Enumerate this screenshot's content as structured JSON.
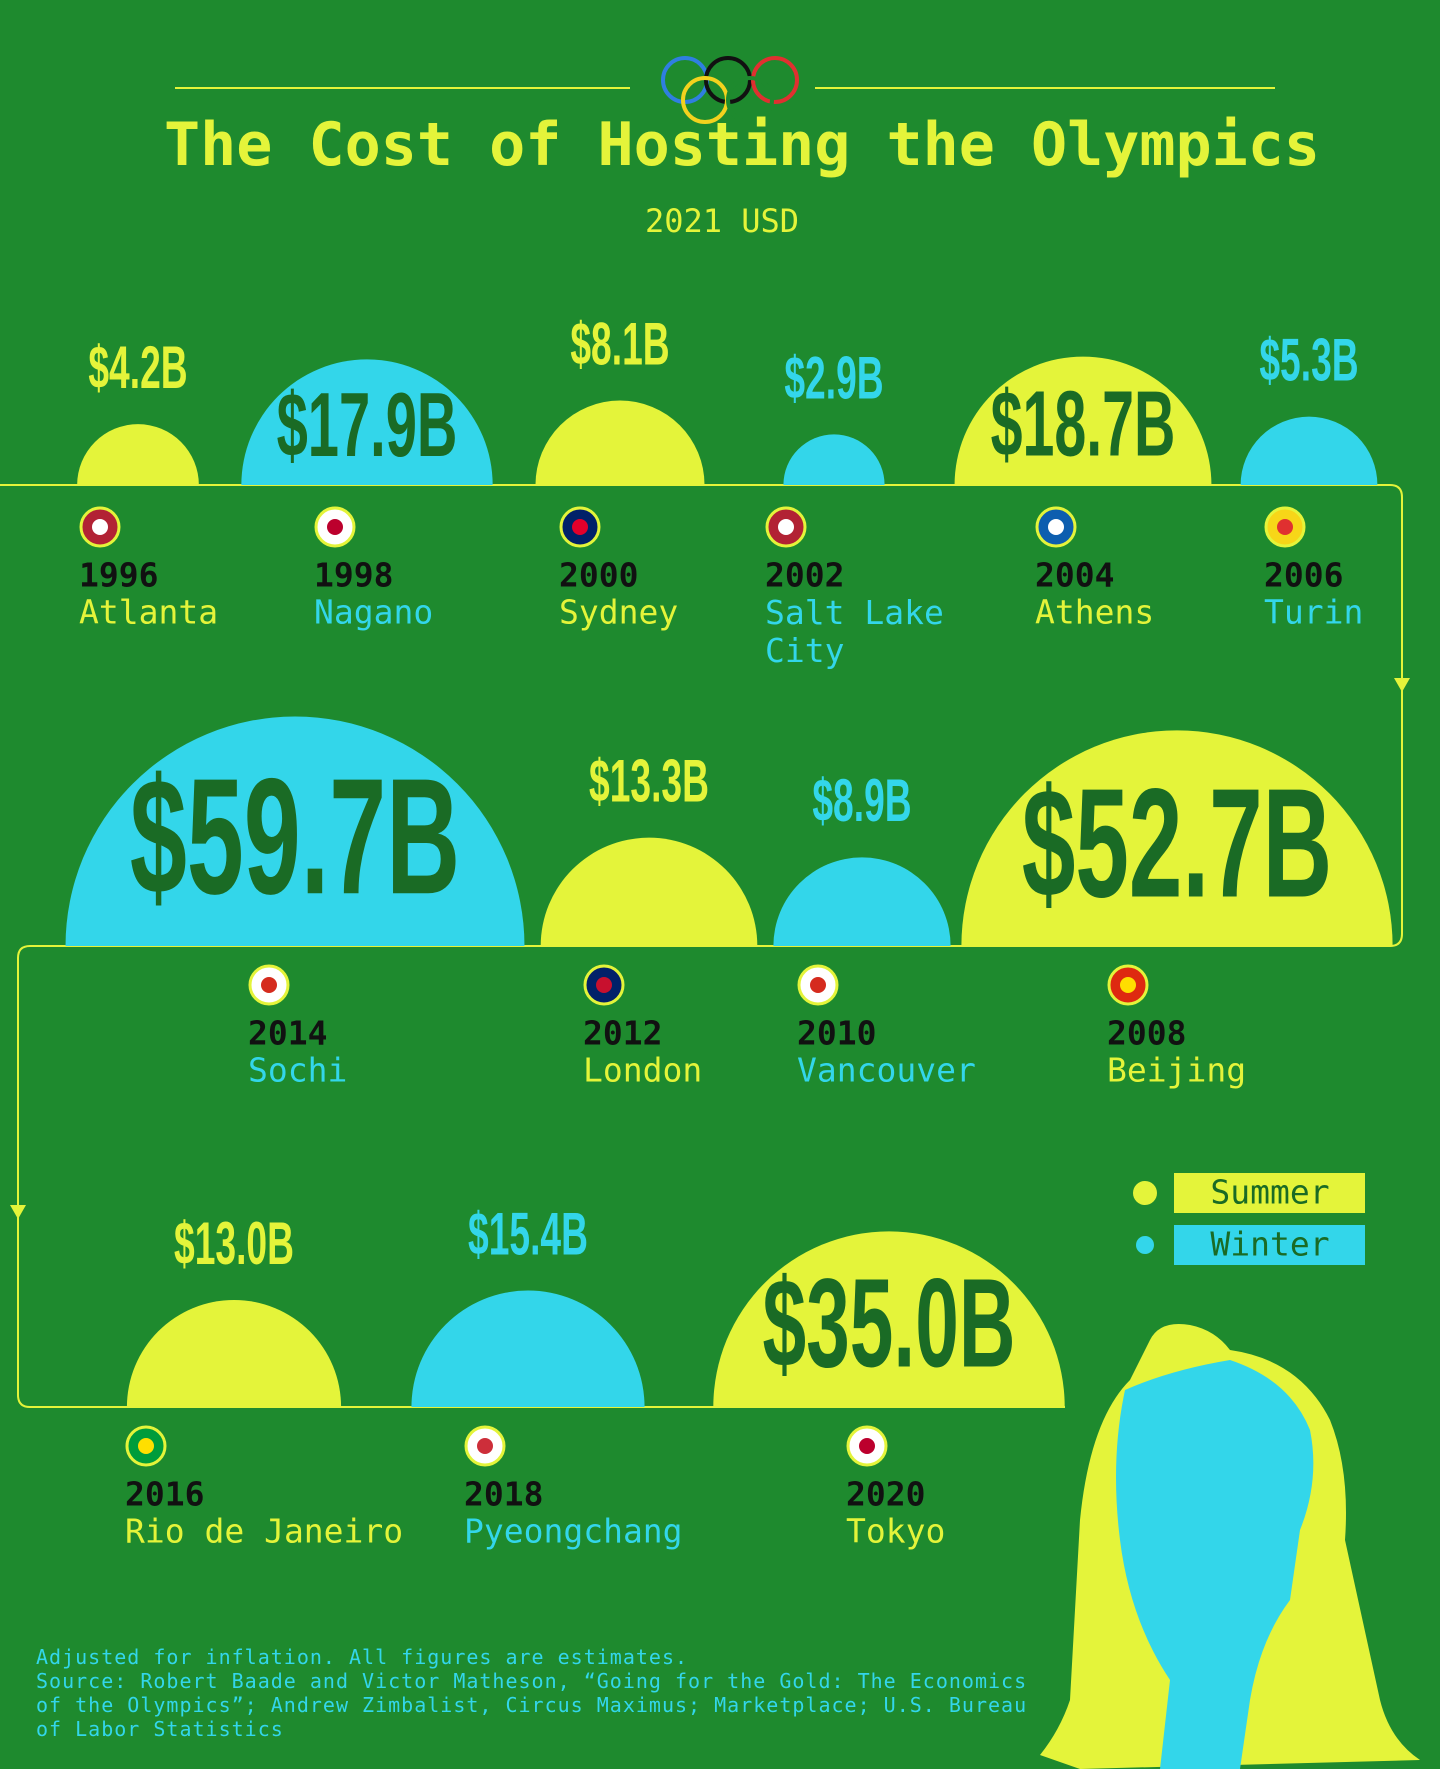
{
  "chart_data": {
    "type": "semicircle",
    "title": "The Cost of Hosting the Olympics",
    "subtitle": "2021 USD",
    "categories": [
      "1996",
      "1998",
      "2000",
      "2002",
      "2004",
      "2006",
      "2008",
      "2010",
      "2012",
      "2014",
      "2016",
      "2018",
      "2020"
    ],
    "cities": [
      "Atlanta",
      "Nagano",
      "Sydney",
      "Salt Lake City",
      "Athens",
      "Turin",
      "Beijing",
      "Vancouver",
      "London",
      "Sochi",
      "Rio de Janeiro",
      "Pyeongchang",
      "Tokyo"
    ],
    "series": [
      {
        "name": "Summer",
        "color": "#e4f43a",
        "values": [
          4.2,
          null,
          8.1,
          null,
          18.7,
          null,
          52.7,
          null,
          13.3,
          null,
          13.0,
          null,
          35.0
        ],
        "value_labels": [
          "$4.2B",
          null,
          "$8.1B",
          null,
          "$18.7B",
          null,
          "$52.7B",
          null,
          "$13.3B",
          null,
          "$13.0B",
          null,
          "$35.0B"
        ]
      },
      {
        "name": "Winter",
        "color": "#33d6ea",
        "values": [
          null,
          17.9,
          null,
          2.9,
          null,
          5.3,
          null,
          8.9,
          null,
          59.7,
          null,
          15.4,
          null
        ],
        "value_labels": [
          null,
          "$17.9B",
          null,
          "$2.9B",
          null,
          "$5.3B",
          null,
          "$8.9B",
          null,
          "$59.7B",
          null,
          "$15.4B",
          null
        ]
      }
    ],
    "note": "Adjusted for inflation. All figures are estimates.",
    "source": "Source: Robert Baade and Victor Matheson, “Going for the Gold: The Economics of the Olympics”; Andrew Zimbalist, Circus Maximus; Marketplace; U.S. Bureau of Labor Statistics"
  }
}
